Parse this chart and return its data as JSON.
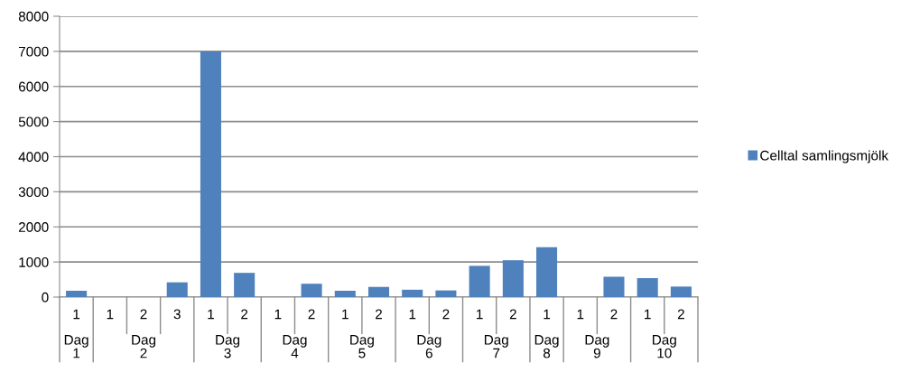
{
  "chart_data": {
    "type": "bar",
    "categories": [
      "1",
      "1",
      "2",
      "3",
      "1",
      "2",
      "1",
      "2",
      "1",
      "2",
      "1",
      "2",
      "1",
      "2",
      "1",
      "1",
      "2",
      "1",
      "2"
    ],
    "series": [
      {
        "name": "Celltal samlingsmjölk",
        "color": "#4f81bd",
        "values": [
          180,
          null,
          null,
          420,
          7000,
          690,
          null,
          380,
          180,
          290,
          210,
          190,
          890,
          1050,
          1420,
          null,
          580,
          540,
          300
        ]
      }
    ],
    "annotations": [
      "Dag 1",
      "Dag 2",
      "Dag 3",
      "Dag 4",
      "Dag 5",
      "Dag 6",
      "Dag 7",
      "Dag 8",
      "Dag 9",
      "Dag 10"
    ],
    "ylim": [
      0,
      8000
    ],
    "yticks": [
      0,
      1000,
      2000,
      3000,
      4000,
      5000,
      6000,
      7000,
      8000
    ],
    "grid": "y",
    "legend": "right"
  }
}
